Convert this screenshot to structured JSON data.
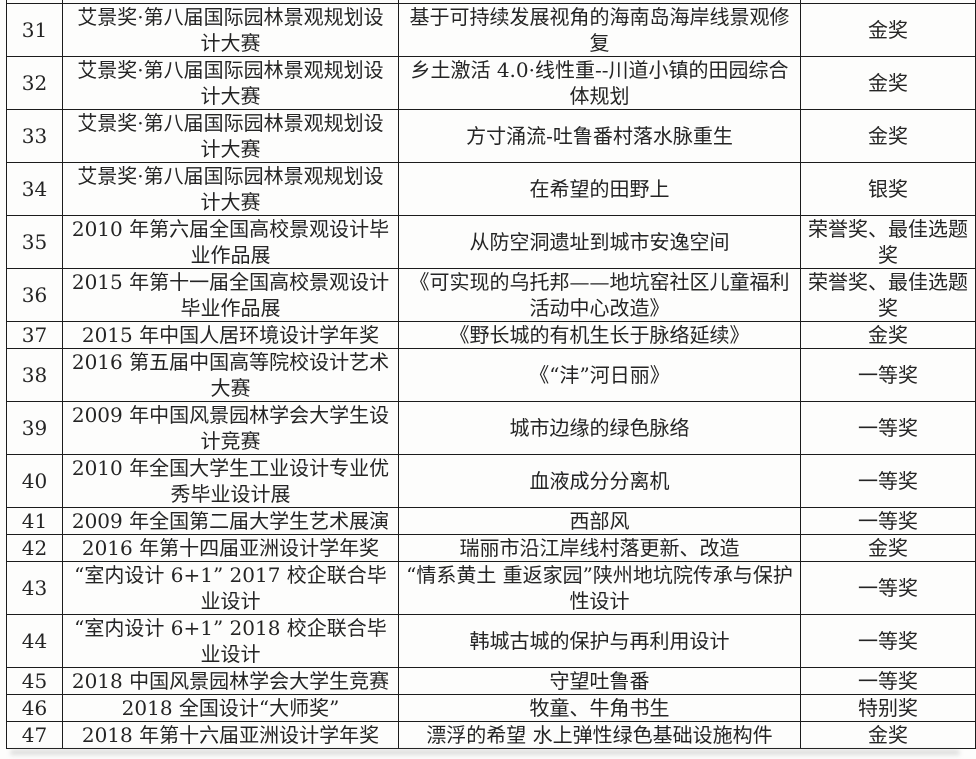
{
  "rows": [
    {
      "no": "31",
      "competition": "艾景奖·第八届国际园林景观规划设计大赛",
      "project": "基于可持续发展视角的海南岛海岸线景观修复",
      "award": "金奖"
    },
    {
      "no": "32",
      "competition": "艾景奖·第八届国际园林景观规划设计大赛",
      "project": "乡土激活 4.0·线性重--川道小镇的田园综合体规划",
      "award": "金奖"
    },
    {
      "no": "33",
      "competition": "艾景奖·第八届国际园林景观规划设计大赛",
      "project": "方寸涌流-吐鲁番村落水脉重生",
      "award": "金奖"
    },
    {
      "no": "34",
      "competition": "艾景奖·第八届国际园林景观规划设计大赛",
      "project": "在希望的田野上",
      "award": "银奖"
    },
    {
      "no": "35",
      "competition": "2010 年第六届全国高校景观设计毕业作品展",
      "project": "从防空洞遗址到城市安逸空间",
      "award": "荣誉奖、最佳选题奖"
    },
    {
      "no": "36",
      "competition": "2015 年第十一届全国高校景观设计毕业作品展",
      "project": "《可实现的乌托邦——地坑窑社区儿童福利活动中心改造》",
      "award": "荣誉奖、最佳选题奖"
    },
    {
      "no": "37",
      "competition": "2015 年中国人居环境设计学年奖",
      "project": "《野长城的有机生长于脉络延续》",
      "award": "金奖"
    },
    {
      "no": "38",
      "competition": "2016 第五届中国高等院校设计艺术大赛",
      "project": "《“沣”河日丽》",
      "award": "一等奖"
    },
    {
      "no": "39",
      "competition": "2009 年中国风景园林学会大学生设计竞赛",
      "project": "城市边缘的绿色脉络",
      "award": "一等奖"
    },
    {
      "no": "40",
      "competition": "2010 年全国大学生工业设计专业优秀毕业设计展",
      "project": "血液成分分离机",
      "award": "一等奖"
    },
    {
      "no": "41",
      "competition": "2009 年全国第二届大学生艺术展演",
      "project": "西部风",
      "award": "一等奖"
    },
    {
      "no": "42",
      "competition": "2016 年第十四届亚洲设计学年奖",
      "project": "瑞丽市沿江岸线村落更新、改造",
      "award": "金奖"
    },
    {
      "no": "43",
      "competition": "“室内设计 6+1” 2017 校企联合毕业设计",
      "project": "“情系黄土 重返家园”陕州地坑院传承与保护性设计",
      "award": "一等奖"
    },
    {
      "no": "44",
      "competition": "“室内设计 6+1” 2018 校企联合毕业设计",
      "project": "韩城古城的保护与再利用设计",
      "award": "一等奖"
    },
    {
      "no": "45",
      "competition": "2018 中国风景园林学会大学生竞赛",
      "project": "守望吐鲁番",
      "award": "一等奖"
    },
    {
      "no": "46",
      "competition": "2018 全国设计“大师奖”",
      "project": "牧童、牛角书生",
      "award": "特别奖"
    },
    {
      "no": "47",
      "competition": "2018 年第十六届亚洲设计学年奖",
      "project": "漂浮的希望 水上弹性绿色基础设施构件",
      "award": "金奖"
    }
  ]
}
